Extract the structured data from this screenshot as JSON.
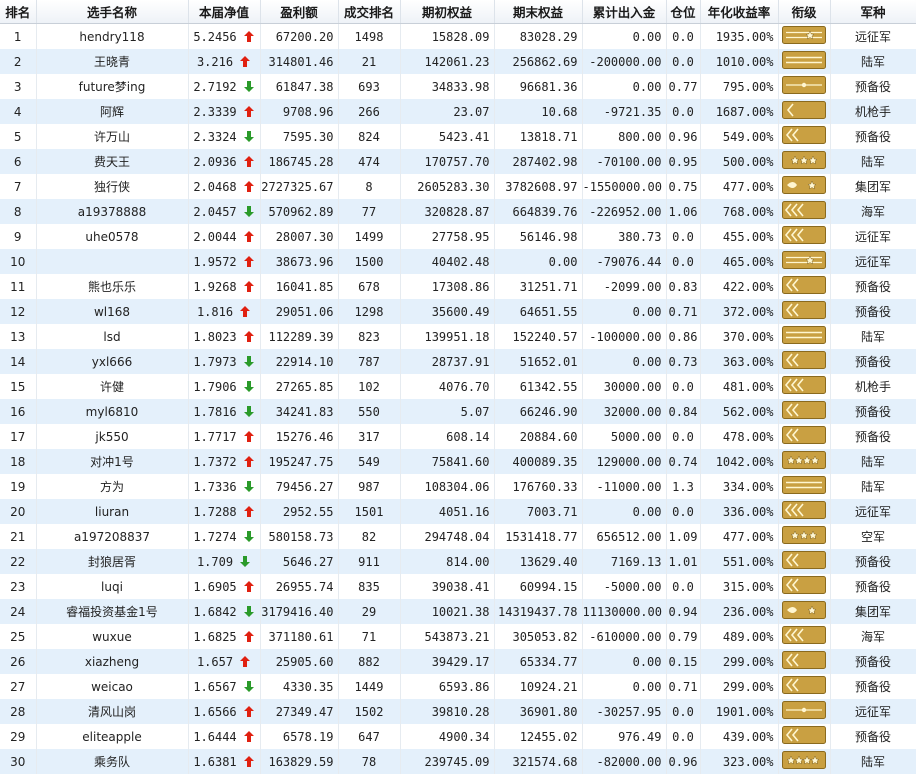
{
  "headers": [
    "排名",
    "选手名称",
    "本届净值",
    "盈利额",
    "成交排名",
    "期初权益",
    "期末权益",
    "累计出入金",
    "仓位",
    "年化收益率",
    "衔级",
    "军种"
  ],
  "rows": [
    {
      "rank": "1",
      "name": "hendry118",
      "nav": "5.2456",
      "dir": "up",
      "profit": "67200.20",
      "trade_rank": "1498",
      "start": "15828.09",
      "end": "83028.29",
      "flow": "0.00",
      "pos": "0.0",
      "annual": "1935.00%",
      "badge": "stripes-1star",
      "branch": "远征军"
    },
    {
      "rank": "2",
      "name": "王晓青",
      "nav": "3.216",
      "dir": "up",
      "profit": "314801.46",
      "trade_rank": "21",
      "start": "142061.23",
      "end": "256862.69",
      "flow": "-200000.00",
      "pos": "0.0",
      "annual": "1010.00%",
      "badge": "stripes",
      "branch": "陆军"
    },
    {
      "rank": "3",
      "name": "future梦ing",
      "nav": "2.7192",
      "dir": "down",
      "profit": "61847.38",
      "trade_rank": "693",
      "start": "34833.98",
      "end": "96681.36",
      "flow": "0.00",
      "pos": "0.77",
      "annual": "795.00%",
      "badge": "bar-dot",
      "branch": "预备役"
    },
    {
      "rank": "4",
      "name": "阿辉",
      "nav": "2.3339",
      "dir": "up",
      "profit": "9708.96",
      "trade_rank": "266",
      "start": "23.07",
      "end": "10.68",
      "flow": "-9721.35",
      "pos": "0.0",
      "annual": "1687.00%",
      "badge": "chevron-1",
      "branch": "机枪手"
    },
    {
      "rank": "5",
      "name": "许万山",
      "nav": "2.3324",
      "dir": "down",
      "profit": "7595.30",
      "trade_rank": "824",
      "start": "5423.41",
      "end": "13818.71",
      "flow": "800.00",
      "pos": "0.96",
      "annual": "549.00%",
      "badge": "chevron-2",
      "branch": "预备役"
    },
    {
      "rank": "6",
      "name": "费天王",
      "nav": "2.0936",
      "dir": "up",
      "profit": "186745.28",
      "trade_rank": "474",
      "start": "170757.70",
      "end": "287402.98",
      "flow": "-70100.00",
      "pos": "0.95",
      "annual": "500.00%",
      "badge": "3star",
      "branch": "陆军"
    },
    {
      "rank": "7",
      "name": "独行侠",
      "nav": "2.0468",
      "dir": "up",
      "profit": "2727325.67",
      "trade_rank": "8",
      "start": "2605283.30",
      "end": "3782608.97",
      "flow": "-1550000.00",
      "pos": "0.75",
      "annual": "477.00%",
      "badge": "leaf-1star",
      "branch": "集团军"
    },
    {
      "rank": "8",
      "name": "a19378888",
      "nav": "2.0457",
      "dir": "down",
      "profit": "570962.89",
      "trade_rank": "77",
      "start": "320828.87",
      "end": "664839.76",
      "flow": "-226952.00",
      "pos": "1.06",
      "annual": "768.00%",
      "badge": "chevron-3",
      "branch": "海军"
    },
    {
      "rank": "9",
      "name": "uhe0578",
      "nav": "2.0044",
      "dir": "up",
      "profit": "28007.30",
      "trade_rank": "1499",
      "start": "27758.95",
      "end": "56146.98",
      "flow": "380.73",
      "pos": "0.0",
      "annual": "455.00%",
      "badge": "chevron-3",
      "branch": "远征军"
    },
    {
      "rank": "10",
      "name": "",
      "nav": "1.9572",
      "dir": "up",
      "profit": "38673.96",
      "trade_rank": "1500",
      "start": "40402.48",
      "end": "0.00",
      "flow": "-79076.44",
      "pos": "0.0",
      "annual": "465.00%",
      "badge": "stripes-1star",
      "branch": "远征军"
    },
    {
      "rank": "11",
      "name": "熊也乐乐",
      "nav": "1.9268",
      "dir": "up",
      "profit": "16041.85",
      "trade_rank": "678",
      "start": "17308.86",
      "end": "31251.71",
      "flow": "-2099.00",
      "pos": "0.83",
      "annual": "422.00%",
      "badge": "chevron-2",
      "branch": "预备役"
    },
    {
      "rank": "12",
      "name": "wl168",
      "nav": "1.816",
      "dir": "up",
      "profit": "29051.06",
      "trade_rank": "1298",
      "start": "35600.49",
      "end": "64651.55",
      "flow": "0.00",
      "pos": "0.71",
      "annual": "372.00%",
      "badge": "chevron-2",
      "branch": "预备役"
    },
    {
      "rank": "13",
      "name": "lsd",
      "nav": "1.8023",
      "dir": "up",
      "profit": "112289.39",
      "trade_rank": "823",
      "start": "139951.18",
      "end": "152240.57",
      "flow": "-100000.00",
      "pos": "0.86",
      "annual": "370.00%",
      "badge": "stripes",
      "branch": "陆军"
    },
    {
      "rank": "14",
      "name": "yxl666",
      "nav": "1.7973",
      "dir": "down",
      "profit": "22914.10",
      "trade_rank": "787",
      "start": "28737.91",
      "end": "51652.01",
      "flow": "0.00",
      "pos": "0.73",
      "annual": "363.00%",
      "badge": "chevron-2",
      "branch": "预备役"
    },
    {
      "rank": "15",
      "name": "许健",
      "nav": "1.7906",
      "dir": "down",
      "profit": "27265.85",
      "trade_rank": "102",
      "start": "4076.70",
      "end": "61342.55",
      "flow": "30000.00",
      "pos": "0.0",
      "annual": "481.00%",
      "badge": "chevron-3",
      "branch": "机枪手"
    },
    {
      "rank": "16",
      "name": "myl6810",
      "nav": "1.7816",
      "dir": "down",
      "profit": "34241.83",
      "trade_rank": "550",
      "start": "5.07",
      "end": "66246.90",
      "flow": "32000.00",
      "pos": "0.84",
      "annual": "562.00%",
      "badge": "chevron-2",
      "branch": "预备役"
    },
    {
      "rank": "17",
      "name": "jk550",
      "nav": "1.7717",
      "dir": "up",
      "profit": "15276.46",
      "trade_rank": "317",
      "start": "608.14",
      "end": "20884.60",
      "flow": "5000.00",
      "pos": "0.0",
      "annual": "478.00%",
      "badge": "chevron-2",
      "branch": "预备役"
    },
    {
      "rank": "18",
      "name": "对冲1号",
      "nav": "1.7372",
      "dir": "up",
      "profit": "195247.75",
      "trade_rank": "549",
      "start": "75841.60",
      "end": "400089.35",
      "flow": "129000.00",
      "pos": "0.74",
      "annual": "1042.00%",
      "badge": "4star",
      "branch": "陆军"
    },
    {
      "rank": "19",
      "name": "方为",
      "nav": "1.7336",
      "dir": "down",
      "profit": "79456.27",
      "trade_rank": "987",
      "start": "108304.06",
      "end": "176760.33",
      "flow": "-11000.00",
      "pos": "1.3",
      "annual": "334.00%",
      "badge": "stripes",
      "branch": "陆军"
    },
    {
      "rank": "20",
      "name": "liuran",
      "nav": "1.7288",
      "dir": "up",
      "profit": "2952.55",
      "trade_rank": "1501",
      "start": "4051.16",
      "end": "7003.71",
      "flow": "0.00",
      "pos": "0.0",
      "annual": "336.00%",
      "badge": "chevron-3",
      "branch": "远征军"
    },
    {
      "rank": "21",
      "name": "a197208837",
      "nav": "1.7274",
      "dir": "down",
      "profit": "580158.73",
      "trade_rank": "82",
      "start": "294748.04",
      "end": "1531418.77",
      "flow": "656512.00",
      "pos": "1.09",
      "annual": "477.00%",
      "badge": "3star",
      "branch": "空军"
    },
    {
      "rank": "22",
      "name": "封狼居胥",
      "nav": "1.709",
      "dir": "down",
      "profit": "5646.27",
      "trade_rank": "911",
      "start": "814.00",
      "end": "13629.40",
      "flow": "7169.13",
      "pos": "1.01",
      "annual": "551.00%",
      "badge": "chevron-2",
      "branch": "预备役"
    },
    {
      "rank": "23",
      "name": "luqi",
      "nav": "1.6905",
      "dir": "up",
      "profit": "26955.74",
      "trade_rank": "835",
      "start": "39038.41",
      "end": "60994.15",
      "flow": "-5000.00",
      "pos": "0.0",
      "annual": "315.00%",
      "badge": "chevron-2",
      "branch": "预备役"
    },
    {
      "rank": "24",
      "name": "睿福投资基金1号",
      "nav": "1.6842",
      "dir": "down",
      "profit": "3179416.40",
      "trade_rank": "29",
      "start": "10021.38",
      "end": "14319437.78",
      "flow": "11130000.00",
      "pos": "0.94",
      "annual": "236.00%",
      "badge": "leaf-1star",
      "branch": "集团军"
    },
    {
      "rank": "25",
      "name": "wuxue",
      "nav": "1.6825",
      "dir": "up",
      "profit": "371180.61",
      "trade_rank": "71",
      "start": "543873.21",
      "end": "305053.82",
      "flow": "-610000.00",
      "pos": "0.79",
      "annual": "489.00%",
      "badge": "chevron-3",
      "branch": "海军"
    },
    {
      "rank": "26",
      "name": "xiazheng",
      "nav": "1.657",
      "dir": "up",
      "profit": "25905.60",
      "trade_rank": "882",
      "start": "39429.17",
      "end": "65334.77",
      "flow": "0.00",
      "pos": "0.15",
      "annual": "299.00%",
      "badge": "chevron-2",
      "branch": "预备役"
    },
    {
      "rank": "27",
      "name": "weicao",
      "nav": "1.6567",
      "dir": "down",
      "profit": "4330.35",
      "trade_rank": "1449",
      "start": "6593.86",
      "end": "10924.21",
      "flow": "0.00",
      "pos": "0.71",
      "annual": "299.00%",
      "badge": "chevron-2",
      "branch": "预备役"
    },
    {
      "rank": "28",
      "name": "清风山岗",
      "nav": "1.6566",
      "dir": "up",
      "profit": "27349.47",
      "trade_rank": "1502",
      "start": "39810.28",
      "end": "36901.80",
      "flow": "-30257.95",
      "pos": "0.0",
      "annual": "1901.00%",
      "badge": "bar-dot",
      "branch": "远征军"
    },
    {
      "rank": "29",
      "name": "eliteapple",
      "nav": "1.6444",
      "dir": "up",
      "profit": "6578.19",
      "trade_rank": "647",
      "start": "4900.34",
      "end": "12455.02",
      "flow": "976.49",
      "pos": "0.0",
      "annual": "439.00%",
      "badge": "chevron-2",
      "branch": "预备役"
    },
    {
      "rank": "30",
      "name": "乘务队",
      "nav": "1.6381",
      "dir": "up",
      "profit": "163829.59",
      "trade_rank": "78",
      "start": "239745.09",
      "end": "321574.68",
      "flow": "-82000.00",
      "pos": "0.96",
      "annual": "323.00%",
      "badge": "4star",
      "branch": "陆军"
    }
  ],
  "colors": {
    "up": "#e02010",
    "down": "#2a9a2a",
    "row_alt": "#e4f0fb",
    "badge_gold": "#c9a042",
    "badge_border": "#8a6a1e"
  }
}
